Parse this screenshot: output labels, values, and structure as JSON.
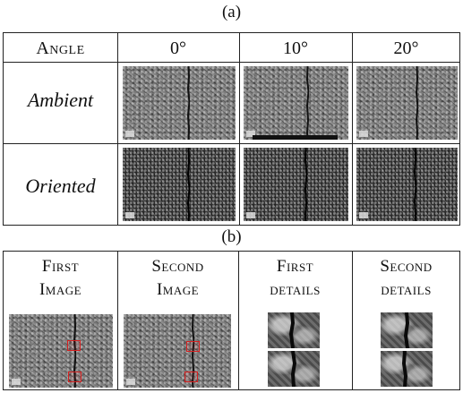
{
  "captions": {
    "a": "(a)",
    "b": "(b)"
  },
  "table_a": {
    "header": {
      "angle": "Angle",
      "col0": "0°",
      "col10": "10°",
      "col20": "20°"
    },
    "rows": [
      {
        "label": "Ambient"
      },
      {
        "label": "Oriented"
      }
    ]
  },
  "table_b": {
    "headers": [
      {
        "line1": "First",
        "line2": "Image"
      },
      {
        "line1": "Second",
        "line2": "Image"
      },
      {
        "line1": "First",
        "line2": "details"
      },
      {
        "line1": "Second",
        "line2": "details"
      }
    ]
  },
  "colors": {
    "highlight_box": "#d62020",
    "rule": "#222222"
  }
}
